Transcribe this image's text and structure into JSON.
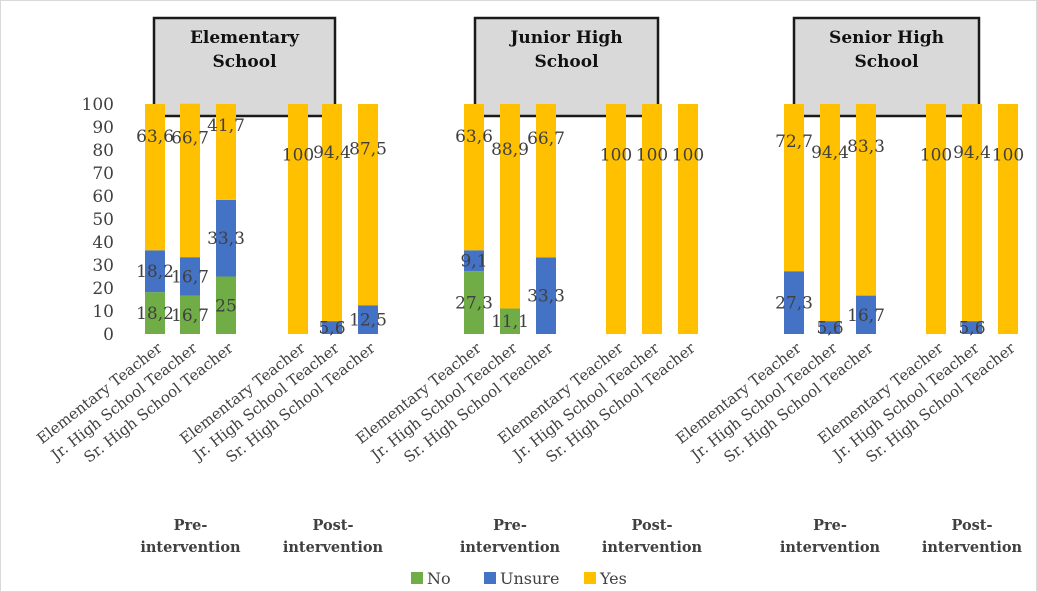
{
  "chart_data": {
    "type": "bar",
    "stacked": true,
    "ylim": [
      0,
      100
    ],
    "yticks": [
      0,
      10,
      20,
      30,
      40,
      50,
      60,
      70,
      80,
      90,
      100
    ],
    "grid": false,
    "legend_position": "bottom",
    "series": [
      {
        "name": "No",
        "color": "#70ad47"
      },
      {
        "name": "Unsure",
        "color": "#4472c4"
      },
      {
        "name": "Yes",
        "color": "#ffc000"
      }
    ],
    "panels": [
      {
        "title": "Elementary School",
        "title_lines": [
          "Elementary",
          "School"
        ],
        "groups": [
          {
            "label_lines": [
              "Pre-",
              "intervention"
            ],
            "bars": [
              {
                "category": "Elementary Teacher",
                "values": [
                  18.2,
                  18.2,
                  63.6
                ],
                "labels": [
                  "18,2",
                  "18,2",
                  "63,6"
                ]
              },
              {
                "category": "Jr. High School Teacher",
                "values": [
                  16.7,
                  16.7,
                  66.7
                ],
                "labels": [
                  "16,7",
                  "16,7",
                  "66,7"
                ]
              },
              {
                "category": "Sr. High School Teacher",
                "values": [
                  25,
                  33.3,
                  41.7
                ],
                "labels": [
                  "25",
                  "33,3",
                  "41,7"
                ]
              }
            ]
          },
          {
            "label_lines": [
              "Post-",
              "intervention"
            ],
            "bars": [
              {
                "category": "Elementary Teacher",
                "values": [
                  0,
                  0,
                  100
                ],
                "labels": [
                  "",
                  "",
                  "100"
                ]
              },
              {
                "category": "Jr. High School Teacher",
                "values": [
                  0,
                  5.6,
                  94.4
                ],
                "labels": [
                  "",
                  "5,6",
                  "94,4"
                ]
              },
              {
                "category": "Sr. High School Teacher",
                "values": [
                  0,
                  12.5,
                  87.5
                ],
                "labels": [
                  "",
                  "12,5",
                  "87,5"
                ]
              }
            ]
          }
        ]
      },
      {
        "title": "Junior High School",
        "title_lines": [
          "Junior High",
          "School"
        ],
        "groups": [
          {
            "label_lines": [
              "Pre-",
              "intervention"
            ],
            "bars": [
              {
                "category": "Elementary Teacher",
                "values": [
                  27.3,
                  9.1,
                  63.6
                ],
                "labels": [
                  "27,3",
                  "9,1",
                  "63,6"
                ]
              },
              {
                "category": "Jr. High School Teacher",
                "values": [
                  11.1,
                  0,
                  88.9
                ],
                "labels": [
                  "11,1",
                  "",
                  "88,9"
                ]
              },
              {
                "category": "Sr. High School Teacher",
                "values": [
                  0,
                  33.3,
                  66.7
                ],
                "labels": [
                  "",
                  "33,3",
                  "66,7"
                ]
              }
            ]
          },
          {
            "label_lines": [
              "Post-",
              "intervention"
            ],
            "bars": [
              {
                "category": "Elementary Teacher",
                "values": [
                  0,
                  0,
                  100
                ],
                "labels": [
                  "",
                  "",
                  "100"
                ]
              },
              {
                "category": "Jr. High School Teacher",
                "values": [
                  0,
                  0,
                  100
                ],
                "labels": [
                  "",
                  "",
                  "100"
                ]
              },
              {
                "category": "Sr. High School Teacher",
                "values": [
                  0,
                  0,
                  100
                ],
                "labels": [
                  "",
                  "",
                  "100"
                ]
              }
            ]
          }
        ]
      },
      {
        "title": "Senior High School",
        "title_lines": [
          "Senior High",
          "School"
        ],
        "groups": [
          {
            "label_lines": [
              "Pre-",
              "intervention"
            ],
            "bars": [
              {
                "category": "Elementary Teacher",
                "values": [
                  0,
                  27.3,
                  72.7
                ],
                "labels": [
                  "",
                  "27,3",
                  "72,7"
                ]
              },
              {
                "category": "Jr. High School Teacher",
                "values": [
                  0,
                  5.6,
                  94.4
                ],
                "labels": [
                  "",
                  "5,6",
                  "94,4"
                ]
              },
              {
                "category": "Sr. High School Teacher",
                "values": [
                  0,
                  16.7,
                  83.3
                ],
                "labels": [
                  "",
                  "16,7",
                  "83,3"
                ]
              }
            ]
          },
          {
            "label_lines": [
              "Post-",
              "intervention"
            ],
            "bars": [
              {
                "category": "Elementary Teacher",
                "values": [
                  0,
                  0,
                  100
                ],
                "labels": [
                  "",
                  "",
                  "100"
                ]
              },
              {
                "category": "Jr. High School Teacher",
                "values": [
                  0,
                  5.6,
                  94.4
                ],
                "labels": [
                  "",
                  "5,6",
                  "94,4"
                ]
              },
              {
                "category": "Sr. High School Teacher",
                "values": [
                  0,
                  0,
                  100
                ],
                "labels": [
                  "",
                  "",
                  "100"
                ]
              }
            ]
          }
        ]
      }
    ]
  }
}
